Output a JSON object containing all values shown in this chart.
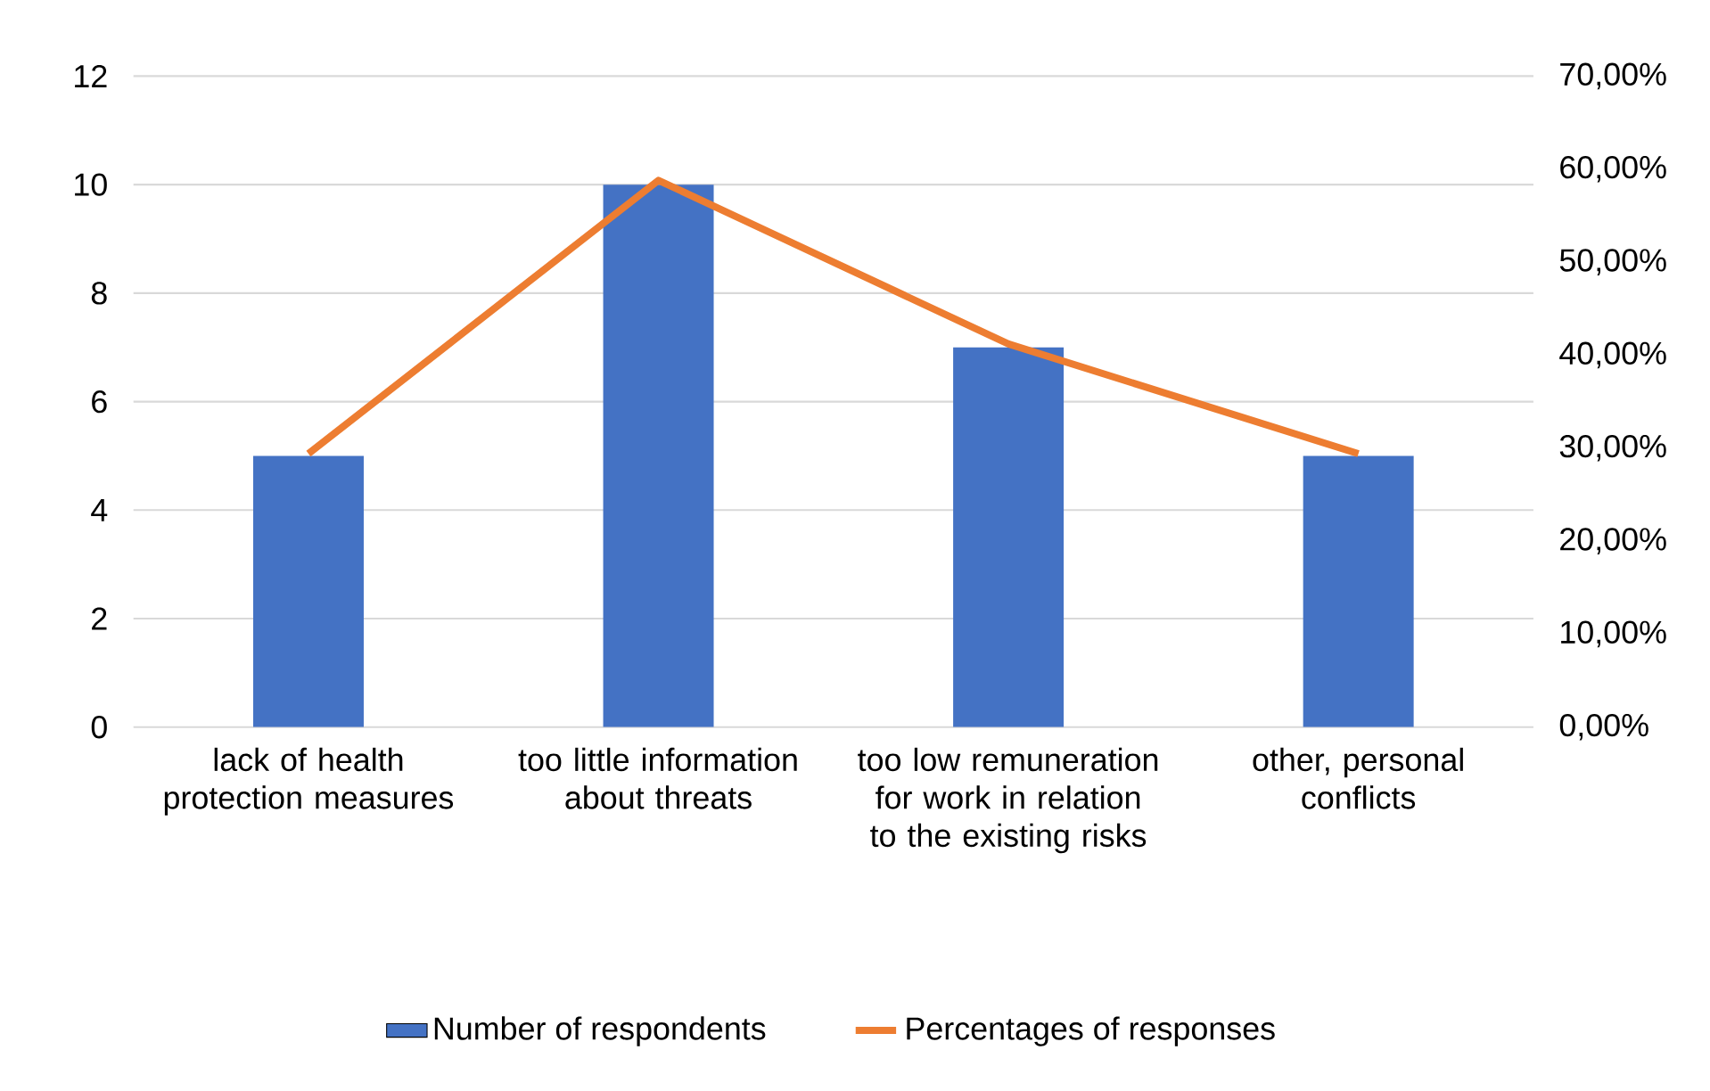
{
  "chart_data": {
    "type": "bar",
    "categories": [
      "lack of health protection measures",
      "too little information about threats",
      "too low remuneration for work in relation to the existing risks",
      "other, personal conflicts"
    ],
    "series": [
      {
        "name": "Number of respondents",
        "color": "#4472c4",
        "values": [
          5,
          10,
          7,
          5
        ]
      },
      {
        "name": "Percentages of responses",
        "type": "line",
        "axis": "y2",
        "color": "#ed7d31",
        "values": [
          29.4,
          58.8,
          41.2,
          29.4
        ]
      }
    ],
    "ylim": [
      0,
      12
    ],
    "yticks": [
      0,
      2,
      4,
      6,
      8,
      10,
      12
    ],
    "y2lim": [
      0,
      70
    ],
    "y2ticks": [
      {
        "value": 0,
        "label": "0,00%"
      },
      {
        "value": 10,
        "label": "10,00%"
      },
      {
        "value": 20,
        "label": "20,00%"
      },
      {
        "value": 30,
        "label": "30,00%"
      },
      {
        "value": 40,
        "label": "40,00%"
      },
      {
        "value": 50,
        "label": "50,00%"
      },
      {
        "value": 60,
        "label": "60,00%"
      },
      {
        "value": 70,
        "label": "70,00%"
      }
    ],
    "grid": "y",
    "legend": "bottom"
  }
}
